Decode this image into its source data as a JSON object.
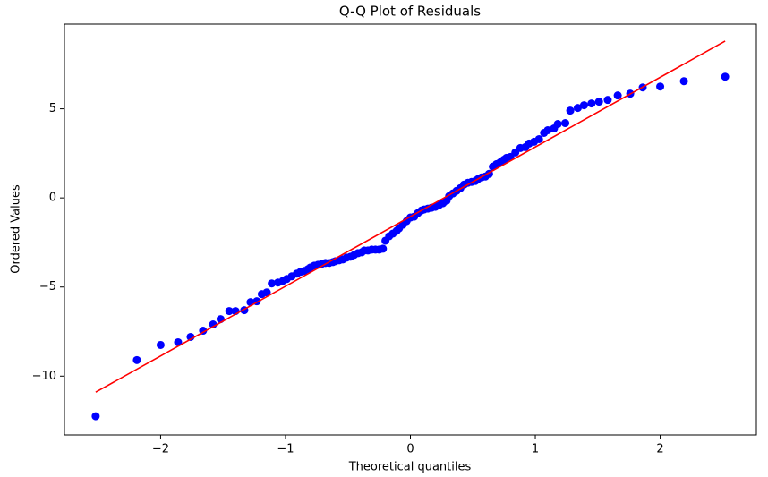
{
  "chart_data": {
    "type": "scatter",
    "title": "Q-Q Plot of Residuals",
    "x_label": "Theoretical quantiles",
    "y_label": "Ordered Values",
    "xlim": [
      -2.77,
      2.77
    ],
    "ylim": [
      -13.3,
      9.75
    ],
    "xticks": [
      {
        "value": -2,
        "label": "−2"
      },
      {
        "value": -1,
        "label": "−1"
      },
      0,
      1,
      2
    ],
    "yticks": [
      {
        "value": -10,
        "label": "−10"
      },
      {
        "value": -5,
        "label": "−5"
      },
      0,
      5
    ],
    "series": [
      {
        "type": "scatter",
        "color": "#0000ff",
        "x": [
          -2.52,
          -2.19,
          -2.0,
          -1.86,
          -1.76,
          -1.66,
          -1.58,
          -1.52,
          -1.45,
          -1.4,
          -1.33,
          -1.28,
          -1.23,
          -1.19,
          -1.15,
          -1.11,
          -1.06,
          -1.02,
          -0.99,
          -0.95,
          -0.91,
          -0.88,
          -0.85,
          -0.82,
          -0.8,
          -0.77,
          -0.74,
          -0.71,
          -0.68,
          -0.65,
          -0.62,
          -0.6,
          -0.57,
          -0.54,
          -0.51,
          -0.48,
          -0.45,
          -0.42,
          -0.39,
          -0.37,
          -0.34,
          -0.31,
          -0.28,
          -0.25,
          -0.22,
          -0.2,
          -0.17,
          -0.14,
          -0.11,
          -0.09,
          -0.06,
          -0.03,
          0.0,
          0.03,
          0.06,
          0.09,
          0.11,
          0.14,
          0.17,
          0.2,
          0.23,
          0.26,
          0.29,
          0.31,
          0.34,
          0.37,
          0.4,
          0.43,
          0.46,
          0.49,
          0.52,
          0.54,
          0.57,
          0.6,
          0.63,
          0.66,
          0.69,
          0.72,
          0.75,
          0.77,
          0.8,
          0.84,
          0.88,
          0.92,
          0.95,
          0.99,
          1.03,
          1.07,
          1.1,
          1.15,
          1.18,
          1.24,
          1.28,
          1.34,
          1.39,
          1.45,
          1.51,
          1.58,
          1.66,
          1.76,
          1.86,
          2.0,
          2.19,
          2.52
        ],
        "values": [
          -12.25,
          -9.1,
          -8.25,
          -8.1,
          -7.8,
          -7.45,
          -7.1,
          -6.8,
          -6.35,
          -6.35,
          -6.3,
          -5.85,
          -5.8,
          -5.4,
          -5.3,
          -4.8,
          -4.75,
          -4.65,
          -4.55,
          -4.4,
          -4.25,
          -4.15,
          -4.1,
          -4.0,
          -3.9,
          -3.8,
          -3.75,
          -3.7,
          -3.65,
          -3.65,
          -3.6,
          -3.55,
          -3.5,
          -3.45,
          -3.35,
          -3.3,
          -3.2,
          -3.1,
          -3.05,
          -2.95,
          -2.95,
          -2.9,
          -2.9,
          -2.9,
          -2.85,
          -2.4,
          -2.15,
          -2.0,
          -1.85,
          -1.7,
          -1.5,
          -1.3,
          -1.1,
          -1.05,
          -0.85,
          -0.7,
          -0.65,
          -0.6,
          -0.55,
          -0.5,
          -0.4,
          -0.3,
          -0.15,
          0.1,
          0.25,
          0.4,
          0.55,
          0.75,
          0.85,
          0.9,
          0.95,
          1.05,
          1.15,
          1.2,
          1.35,
          1.75,
          1.9,
          2.0,
          2.15,
          2.25,
          2.3,
          2.55,
          2.8,
          2.85,
          3.05,
          3.15,
          3.3,
          3.65,
          3.8,
          3.9,
          4.15,
          4.2,
          4.9,
          5.05,
          5.2,
          5.3,
          5.4,
          5.5,
          5.75,
          5.85,
          6.2,
          6.25,
          6.55,
          6.8
        ]
      },
      {
        "type": "line",
        "color": "#ff0000",
        "x": [
          -2.52,
          2.52
        ],
        "values": [
          -10.9,
          8.8
        ]
      }
    ]
  }
}
